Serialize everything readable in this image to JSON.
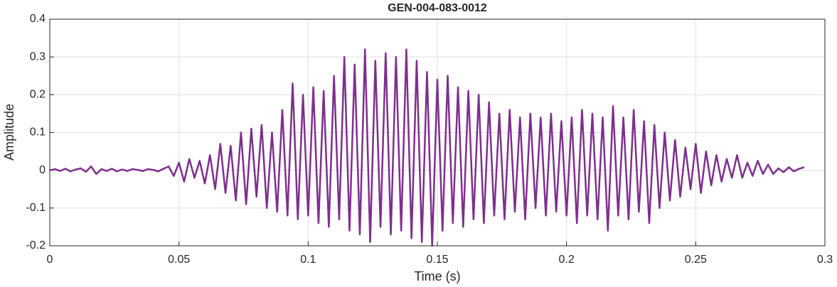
{
  "chart_data": {
    "type": "line",
    "title": "GEN-004-083-0012",
    "xlabel": "Time (s)",
    "ylabel": "Amplitude",
    "x": [
      0,
      0.002,
      0.004,
      0.006,
      0.008,
      0.01,
      0.012,
      0.014,
      0.016,
      0.018,
      0.02,
      0.022,
      0.024,
      0.026,
      0.028,
      0.03,
      0.032,
      0.034,
      0.036,
      0.038,
      0.04,
      0.042,
      0.044,
      0.046,
      0.048,
      0.05,
      0.052,
      0.054,
      0.056,
      0.058,
      0.06,
      0.062,
      0.064,
      0.066,
      0.068,
      0.07,
      0.072,
      0.074,
      0.076,
      0.078,
      0.08,
      0.082,
      0.084,
      0.086,
      0.088,
      0.09,
      0.092,
      0.094,
      0.096,
      0.098,
      0.1,
      0.102,
      0.104,
      0.106,
      0.108,
      0.11,
      0.112,
      0.114,
      0.116,
      0.118,
      0.12,
      0.122,
      0.124,
      0.126,
      0.128,
      0.13,
      0.132,
      0.134,
      0.136,
      0.138,
      0.14,
      0.142,
      0.144,
      0.146,
      0.148,
      0.15,
      0.152,
      0.154,
      0.156,
      0.158,
      0.16,
      0.162,
      0.164,
      0.166,
      0.168,
      0.17,
      0.172,
      0.174,
      0.176,
      0.178,
      0.18,
      0.182,
      0.184,
      0.186,
      0.188,
      0.19,
      0.192,
      0.194,
      0.196,
      0.198,
      0.2,
      0.202,
      0.204,
      0.206,
      0.208,
      0.21,
      0.212,
      0.214,
      0.216,
      0.218,
      0.22,
      0.222,
      0.224,
      0.226,
      0.228,
      0.23,
      0.232,
      0.234,
      0.236,
      0.238,
      0.24,
      0.242,
      0.244,
      0.246,
      0.248,
      0.25,
      0.252,
      0.254,
      0.256,
      0.258,
      0.26,
      0.262,
      0.264,
      0.266,
      0.268,
      0.27,
      0.272,
      0.274,
      0.276,
      0.278,
      0.28,
      0.282,
      0.284,
      0.286,
      0.288,
      0.29,
      0.292
    ],
    "values": [
      0,
      0.003,
      -0.002,
      0.004,
      -0.003,
      0.002,
      0.005,
      -0.004,
      0.01,
      -0.01,
      0.003,
      -0.002,
      0.004,
      -0.003,
      0.002,
      -0.002,
      0.003,
      0.001,
      -0.002,
      0.003,
      0.001,
      -0.003,
      0.004,
      0.01,
      -0.015,
      0.02,
      -0.03,
      0.03,
      -0.02,
      0.025,
      -0.035,
      0.04,
      -0.05,
      0.07,
      -0.06,
      0.065,
      -0.08,
      0.1,
      -0.09,
      0.11,
      -0.07,
      0.12,
      -0.1,
      0.1,
      -0.11,
      0.16,
      -0.12,
      0.23,
      -0.13,
      0.2,
      -0.12,
      0.22,
      -0.14,
      0.21,
      -0.15,
      0.25,
      -0.13,
      0.3,
      -0.16,
      0.28,
      -0.17,
      0.32,
      -0.19,
      0.29,
      -0.15,
      0.31,
      -0.17,
      0.3,
      -0.16,
      0.32,
      -0.18,
      0.29,
      -0.19,
      0.26,
      -0.2,
      0.24,
      -0.16,
      0.25,
      -0.14,
      0.22,
      -0.15,
      0.21,
      -0.13,
      0.2,
      -0.14,
      0.18,
      -0.12,
      0.15,
      -0.13,
      0.16,
      -0.11,
      0.14,
      -0.13,
      0.15,
      -0.1,
      0.14,
      -0.12,
      0.15,
      -0.11,
      0.13,
      -0.12,
      0.14,
      -0.14,
      0.16,
      -0.12,
      0.15,
      -0.13,
      0.14,
      -0.16,
      0.17,
      -0.12,
      0.14,
      -0.13,
      0.16,
      -0.11,
      0.13,
      -0.14,
      0.12,
      -0.1,
      0.1,
      -0.08,
      0.08,
      -0.07,
      0.06,
      -0.05,
      0.07,
      -0.06,
      0.05,
      -0.04,
      0.04,
      -0.03,
      0.03,
      -0.02,
      0.04,
      -0.02,
      0.02,
      -0.015,
      0.025,
      -0.01,
      0.015,
      -0.01,
      0.005,
      -0.005,
      0.008,
      -0.003,
      0.004,
      0.008
    ],
    "color": "#7e2f8e",
    "xlim": [
      0,
      0.3
    ],
    "xticks": [
      0,
      0.05,
      0.1,
      0.15,
      0.2,
      0.25,
      0.3
    ],
    "ylim": [
      -0.2,
      0.4
    ],
    "yticks": [
      -0.2,
      -0.1,
      0,
      0.1,
      0.2,
      0.3,
      0.4
    ],
    "grid": true
  }
}
